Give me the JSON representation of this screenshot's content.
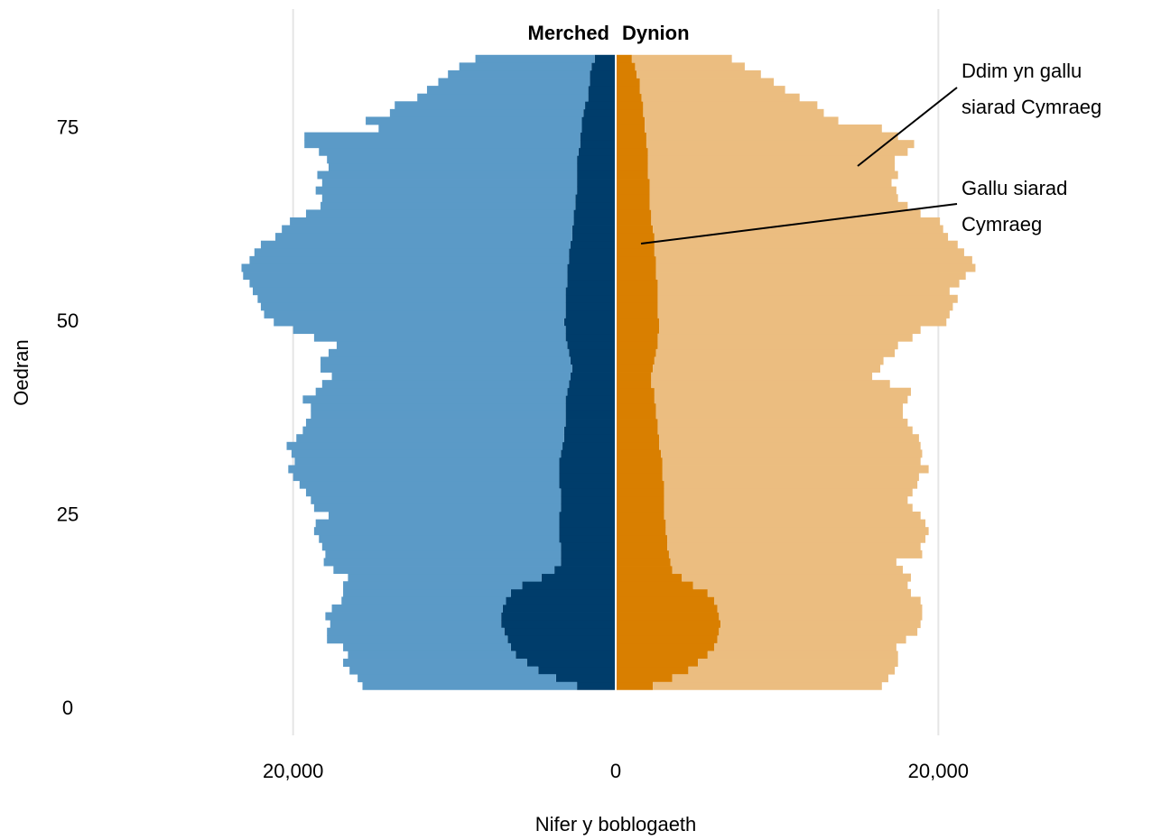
{
  "chart_data": {
    "type": "pyramid",
    "y_label": "Oedran",
    "x_label": "Nifer y boblogaeth",
    "ylim": [
      0,
      87
    ],
    "yticks": [
      0,
      25,
      50,
      75
    ],
    "xlim": [
      -30000,
      30000
    ],
    "xticks": [
      {
        "value": -20000,
        "label": "20,000"
      },
      0,
      {
        "value": 20000,
        "label": "20,000"
      }
    ],
    "grid": true,
    "y": [
      3,
      4,
      5,
      6,
      7,
      8,
      9,
      10,
      11,
      12,
      13,
      14,
      15,
      16,
      17,
      18,
      19,
      20,
      21,
      22,
      23,
      24,
      25,
      26,
      27,
      28,
      29,
      30,
      31,
      32,
      33,
      34,
      35,
      36,
      37,
      38,
      39,
      40,
      41,
      42,
      43,
      44,
      45,
      46,
      47,
      48,
      49,
      50,
      51,
      52,
      53,
      54,
      55,
      56,
      57,
      58,
      59,
      60,
      61,
      62,
      63,
      64,
      65,
      66,
      67,
      68,
      69,
      70,
      71,
      72,
      73,
      74,
      75,
      76,
      77,
      78,
      79,
      80,
      81,
      82,
      83,
      84
    ],
    "panels": [
      {
        "title": "Merched",
        "side": "left",
        "series": [
          {
            "color": "#003d6b",
            "values": [
              2400,
              3700,
              4800,
              5500,
              6200,
              6500,
              6700,
              6900,
              7100,
              7100,
              7000,
              6800,
              6500,
              5800,
              4600,
              3800,
              3400,
              3400,
              3400,
              3500,
              3500,
              3500,
              3500,
              3400,
              3400,
              3400,
              3500,
              3500,
              3500,
              3500,
              3400,
              3300,
              3200,
              3200,
              3100,
              3100,
              3100,
              3100,
              3000,
              2900,
              2800,
              2700,
              2800,
              2900,
              3000,
              3100,
              3100,
              3200,
              3100,
              3100,
              3100,
              3100,
              3000,
              3000,
              3000,
              2900,
              2900,
              2800,
              2700,
              2700,
              2600,
              2600,
              2500,
              2500,
              2400,
              2400,
              2400,
              2400,
              2400,
              2300,
              2200,
              2200,
              2100,
              2100,
              2000,
              1900,
              1700,
              1700,
              1600,
              1600,
              1500,
              1300
            ]
          },
          {
            "color": "#5b9ac7",
            "values": [
              13300,
              12300,
              11700,
              11400,
              10400,
              10400,
              11200,
              11000,
              10600,
              10900,
              10600,
              10200,
              10400,
              11100,
              12000,
              13700,
              14700,
              14600,
              14800,
              14900,
              15200,
              15100,
              14300,
              15300,
              15500,
              15800,
              16100,
              16500,
              16800,
              16400,
              16700,
              17100,
              16600,
              16200,
              16100,
              15800,
              15800,
              16300,
              15600,
              15300,
              14800,
              15600,
              15500,
              14900,
              14300,
              15600,
              16900,
              18000,
              18700,
              18900,
              19100,
              19400,
              19700,
              20100,
              20200,
              19800,
              19500,
              19200,
              18400,
              18000,
              17600,
              16600,
              15800,
              15700,
              16200,
              15800,
              16100,
              15400,
              15500,
              16100,
              17100,
              17100,
              12600,
              13400,
              12000,
              11800,
              10600,
              10000,
              9400,
              8800,
              8200,
              7400
            ]
          }
        ]
      },
      {
        "title": "Dynion",
        "side": "right",
        "series": [
          {
            "color": "#d97f00",
            "values": [
              2300,
              3500,
              4500,
              5100,
              5700,
              6100,
              6300,
              6400,
              6500,
              6400,
              6300,
              6100,
              5700,
              4800,
              4100,
              3500,
              3400,
              3300,
              3200,
              3200,
              3100,
              3100,
              3000,
              3000,
              3000,
              3000,
              3000,
              2900,
              2900,
              2900,
              2800,
              2700,
              2700,
              2600,
              2600,
              2500,
              2500,
              2400,
              2400,
              2200,
              2200,
              2300,
              2400,
              2500,
              2600,
              2600,
              2700,
              2700,
              2600,
              2600,
              2600,
              2600,
              2600,
              2500,
              2500,
              2500,
              2400,
              2400,
              2400,
              2300,
              2200,
              2200,
              2100,
              2100,
              2100,
              2100,
              2000,
              2000,
              2000,
              2000,
              1900,
              1900,
              1800,
              1800,
              1700,
              1700,
              1600,
              1500,
              1500,
              1300,
              1200,
              1000
            ]
          },
          {
            "color": "#ebbd80",
            "values": [
              14200,
              13400,
              12800,
              12400,
              11800,
              11300,
              11700,
              12300,
              12400,
              12600,
              12700,
              12800,
              12600,
              13300,
              14200,
              14300,
              14000,
              15700,
              15700,
              16000,
              16300,
              16100,
              15900,
              15400,
              15100,
              15400,
              15700,
              15900,
              16500,
              16000,
              16200,
              16200,
              16100,
              15800,
              15500,
              15300,
              15300,
              15700,
              15900,
              14800,
              13700,
              14100,
              14200,
              14800,
              14900,
              15800,
              16200,
              17800,
              18100,
              18300,
              18600,
              18100,
              18700,
              19200,
              19800,
              19600,
              19200,
              18800,
              18200,
              18000,
              17900,
              16700,
              16000,
              15400,
              15300,
              15000,
              15500,
              15300,
              15300,
              16100,
              16600,
              15600,
              14700,
              12000,
              11200,
              10800,
              9800,
              9000,
              8300,
              7700,
              6800,
              6200
            ]
          }
        ]
      }
    ],
    "annotations": [
      {
        "lines": [
          "Ddim yn gallu",
          "siarad Cymraeg"
        ]
      },
      {
        "lines": [
          "Gallu siarad",
          "Cymraeg"
        ]
      }
    ]
  }
}
